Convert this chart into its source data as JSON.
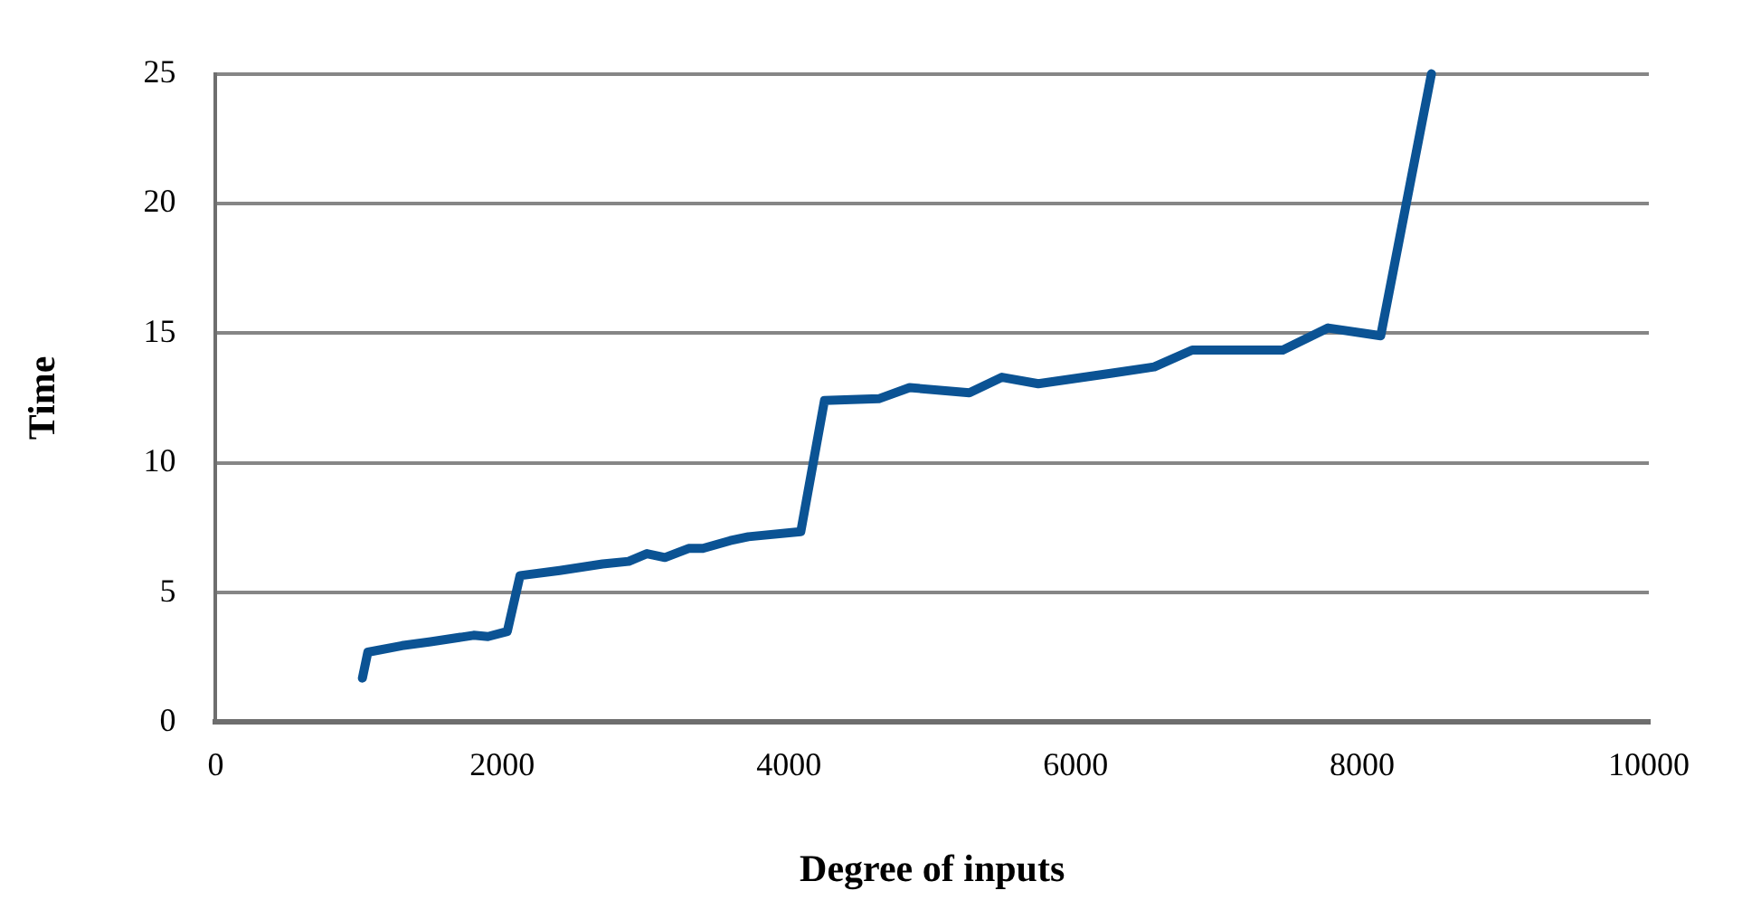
{
  "chart_data": {
    "type": "line",
    "xlabel": "Degree of inputs",
    "ylabel": "Time",
    "series": [
      {
        "color": "#0b5394",
        "x": [
          1024,
          1062,
          1300,
          1500,
          1800,
          1900,
          2035,
          2124,
          2400,
          2700,
          2882,
          3009,
          3135,
          3300,
          3400,
          3590,
          3717,
          4083,
          4248,
          4627,
          4842,
          5259,
          5487,
          5740,
          6245,
          6549,
          6814,
          7446,
          7762,
          8129,
          8483
        ],
        "values": [
          1.7,
          2.7,
          2.95,
          3.1,
          3.35,
          3.3,
          3.5,
          5.65,
          5.85,
          6.1,
          6.2,
          6.5,
          6.35,
          6.7,
          6.7,
          7.0,
          7.15,
          7.35,
          12.4,
          12.47,
          12.9,
          12.7,
          13.3,
          13.05,
          13.45,
          13.7,
          14.35,
          14.35,
          15.2,
          14.9,
          25
        ]
      }
    ],
    "xlim": [
      0,
      10000
    ],
    "xticks": [
      0,
      2000,
      4000,
      6000,
      8000,
      10000
    ],
    "ylim": [
      0,
      25
    ],
    "yticks": [
      0,
      5,
      10,
      15,
      20,
      25
    ],
    "grid": "y",
    "legend": false,
    "marker": "none",
    "line_style": "solid"
  }
}
